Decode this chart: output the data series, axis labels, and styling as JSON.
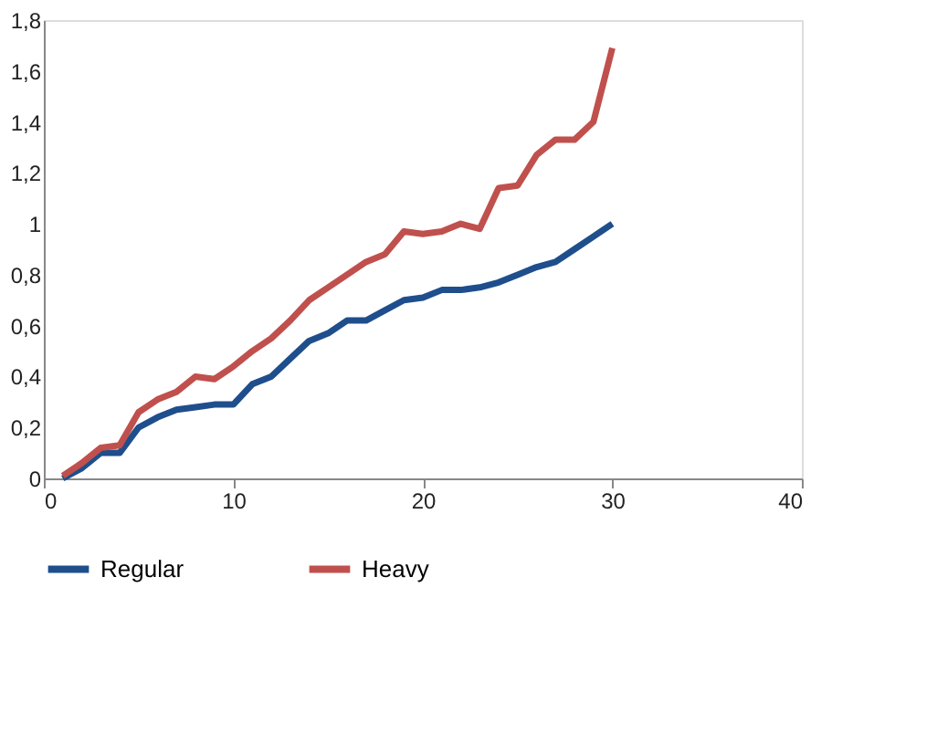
{
  "chart_data": {
    "type": "line",
    "x": [
      1,
      2,
      3,
      4,
      5,
      6,
      7,
      8,
      9,
      10,
      11,
      12,
      13,
      14,
      15,
      16,
      17,
      18,
      19,
      20,
      21,
      22,
      23,
      24,
      25,
      26,
      27,
      28,
      29,
      30
    ],
    "series": [
      {
        "name": "Regular",
        "color": "#1f4e8c",
        "values": [
          0,
          0.04,
          0.1,
          0.1,
          0.2,
          0.24,
          0.27,
          0.28,
          0.29,
          0.29,
          0.37,
          0.4,
          0.47,
          0.54,
          0.57,
          0.62,
          0.62,
          0.66,
          0.7,
          0.71,
          0.74,
          0.74,
          0.75,
          0.77,
          0.8,
          0.83,
          0.85,
          0.9,
          0.95,
          1.0
        ]
      },
      {
        "name": "Heavy",
        "color": "#c0504d",
        "values": [
          0.01,
          0.06,
          0.12,
          0.13,
          0.26,
          0.31,
          0.34,
          0.4,
          0.39,
          0.44,
          0.5,
          0.55,
          0.62,
          0.7,
          0.75,
          0.8,
          0.85,
          0.88,
          0.97,
          0.96,
          0.97,
          1.0,
          0.98,
          1.14,
          1.15,
          1.27,
          1.33,
          1.33,
          1.4,
          1.69
        ]
      }
    ],
    "xlim": [
      0,
      40
    ],
    "xticks": [
      0,
      10,
      20,
      30,
      40
    ],
    "ylim": [
      0,
      1.8
    ],
    "yticks": [
      0,
      {
        "value": 0.2,
        "label": "0,2"
      },
      {
        "value": 0.4,
        "label": "0,4"
      },
      {
        "value": 0.6,
        "label": "0,6"
      },
      {
        "value": 0.8,
        "label": "0,8"
      },
      1,
      {
        "value": 1.2,
        "label": "1,2"
      },
      {
        "value": 1.4,
        "label": "1,4"
      },
      {
        "value": 1.6,
        "label": "1,6"
      },
      {
        "value": 1.8,
        "label": "1,8"
      }
    ],
    "grid": false,
    "legend": "bottom",
    "line_style": "solid",
    "marker": "none"
  }
}
